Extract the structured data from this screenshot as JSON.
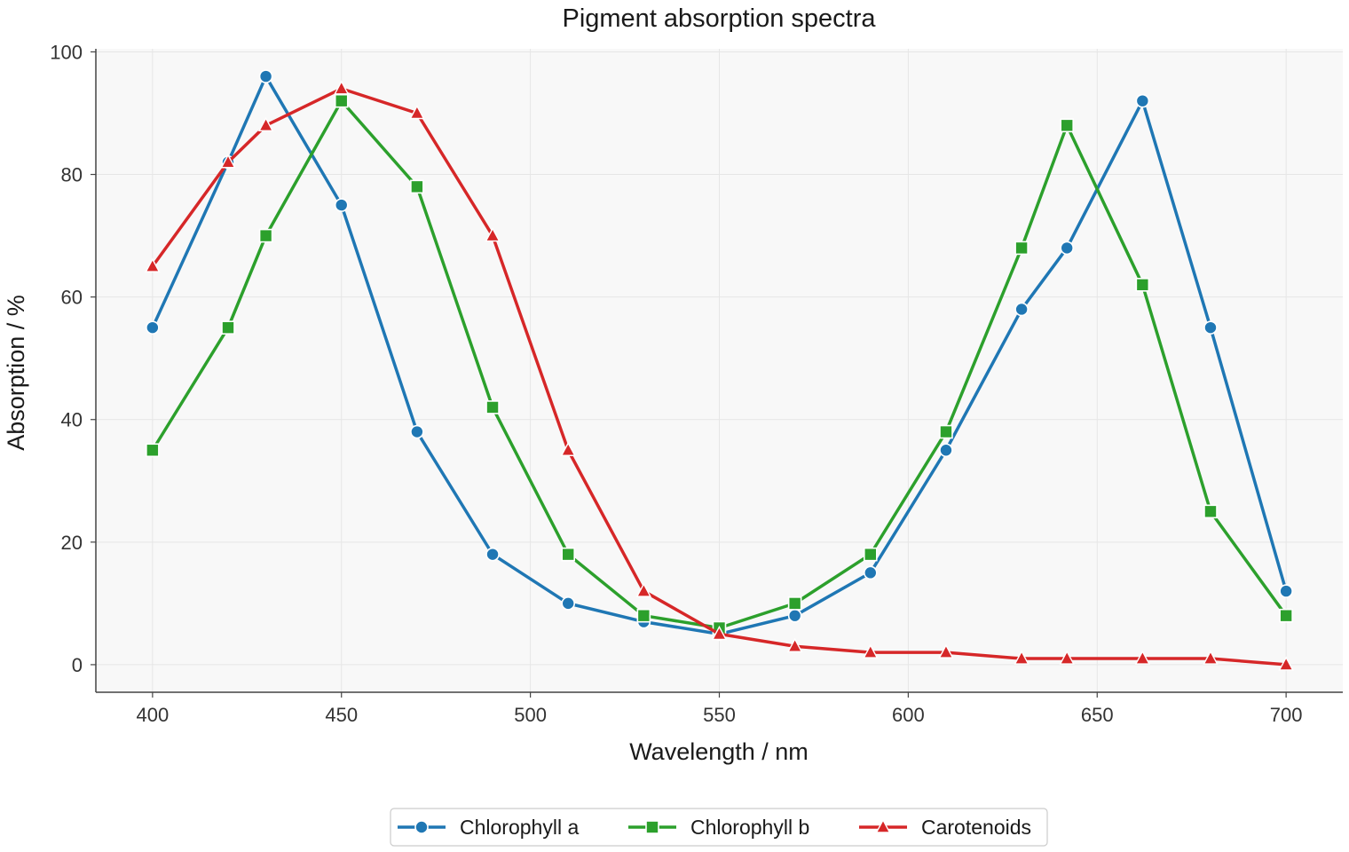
{
  "chart_data": {
    "type": "line",
    "title": "Pigment absorption spectra",
    "xlabel": "Wavelength / nm",
    "ylabel": "Absorption / %",
    "xlim": [
      385,
      715
    ],
    "ylim": [
      -4.5,
      100.5
    ],
    "xticks": [
      "400",
      "450",
      "500",
      "550",
      "600",
      "650",
      "700"
    ],
    "yticks": [
      "0",
      "20",
      "40",
      "60",
      "80",
      "100"
    ],
    "grid": true,
    "legend_position": "bottom-center",
    "colors": {
      "background": "#f8f8f8",
      "grid": "#e6e6e6",
      "axis": "#444444"
    },
    "series": [
      {
        "name": "Chlorophyll a",
        "color": "#1f77b4",
        "marker": "circle",
        "x": [
          400,
          420,
          430,
          450,
          470,
          490,
          510,
          530,
          550,
          570,
          590,
          610,
          630,
          642,
          662,
          680,
          700
        ],
        "y": [
          55,
          82,
          96,
          75,
          38,
          18,
          10,
          7,
          5,
          8,
          15,
          35,
          58,
          68,
          92,
          55,
          12
        ]
      },
      {
        "name": "Chlorophyll b",
        "color": "#2ca02c",
        "marker": "square",
        "x": [
          400,
          420,
          430,
          450,
          470,
          490,
          510,
          530,
          550,
          570,
          590,
          610,
          630,
          642,
          662,
          680,
          700
        ],
        "y": [
          35,
          55,
          70,
          92,
          78,
          42,
          18,
          8,
          6,
          10,
          18,
          38,
          68,
          88,
          62,
          25,
          8
        ]
      },
      {
        "name": "Carotenoids",
        "color": "#d62728",
        "marker": "triangle",
        "x": [
          400,
          420,
          430,
          450,
          470,
          490,
          510,
          530,
          550,
          570,
          590,
          610,
          630,
          642,
          662,
          680,
          700
        ],
        "y": [
          65,
          82,
          88,
          94,
          90,
          70,
          35,
          12,
          5,
          3,
          2,
          2,
          1,
          1,
          1,
          1,
          0
        ]
      }
    ]
  }
}
